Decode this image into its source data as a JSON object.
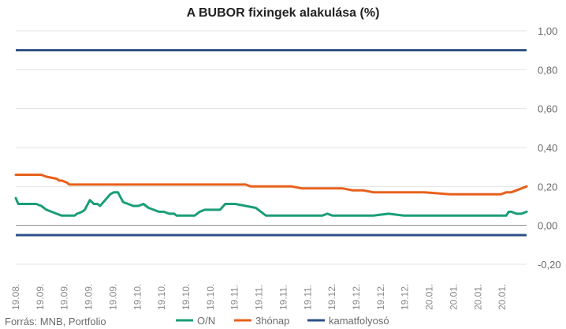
{
  "chart_data": {
    "type": "line",
    "title": "A BUBOR fixingek alakulása (%)",
    "source": "Forrás: MNB, Portfolio",
    "ylim": [
      -0.2,
      1.0
    ],
    "yticks": [
      "1,00",
      "0,80",
      "0,60",
      "0,40",
      "0,20",
      "0,00",
      "-0,20"
    ],
    "ytick_values": [
      1.0,
      0.8,
      0.6,
      0.4,
      0.2,
      0.0,
      -0.2
    ],
    "xlim": [
      0,
      100
    ],
    "x_tick_labels": [
      "19.08.",
      "19.09.",
      "19.09.",
      "19.09.",
      "19.09.",
      "19.10.",
      "19.10.",
      "19.10.",
      "19.10.",
      "19.11.",
      "19.11.",
      "19.11.",
      "19.11.",
      "19.12.",
      "19.12.",
      "19.12.",
      "19.12.",
      "20.01.",
      "20.01.",
      "20.01.",
      "20.01."
    ],
    "x_tick_positions": [
      0,
      4.76,
      9.52,
      14.29,
      19.05,
      23.81,
      28.57,
      33.33,
      38.1,
      42.86,
      47.62,
      52.38,
      57.14,
      61.9,
      66.67,
      71.43,
      76.19,
      80.95,
      85.71,
      90.48,
      95.24
    ],
    "legend_position": "bottom",
    "series": [
      {
        "name": "O/N",
        "color": "#1a9e77",
        "x": [
          0,
          0.5,
          1.5,
          3,
          4,
          5,
          6,
          7,
          8,
          9,
          10,
          11,
          11.5,
          12,
          13,
          13.5,
          14.5,
          15.3,
          16,
          16.5,
          17.5,
          18.5,
          19.2,
          20,
          21,
          22,
          23,
          23.5,
          24,
          25,
          26,
          27,
          28,
          29,
          30,
          31,
          31.5,
          32,
          33,
          34,
          35,
          36,
          37,
          38,
          38.5,
          39,
          40,
          41,
          43,
          45,
          47,
          48,
          49,
          50,
          52,
          54,
          56,
          58,
          60,
          61,
          62,
          63,
          65,
          67,
          70,
          73,
          76,
          80,
          84,
          88,
          91,
          92,
          93,
          94,
          95,
          96,
          96.5,
          97,
          98,
          99,
          100
        ],
        "y": [
          0.14,
          0.11,
          0.11,
          0.11,
          0.11,
          0.1,
          0.08,
          0.07,
          0.06,
          0.05,
          0.05,
          0.05,
          0.05,
          0.06,
          0.07,
          0.08,
          0.13,
          0.11,
          0.11,
          0.1,
          0.13,
          0.16,
          0.17,
          0.17,
          0.12,
          0.11,
          0.1,
          0.1,
          0.1,
          0.11,
          0.09,
          0.08,
          0.07,
          0.07,
          0.06,
          0.06,
          0.05,
          0.05,
          0.05,
          0.05,
          0.05,
          0.07,
          0.08,
          0.08,
          0.08,
          0.08,
          0.08,
          0.11,
          0.11,
          0.1,
          0.09,
          0.07,
          0.05,
          0.05,
          0.05,
          0.05,
          0.05,
          0.05,
          0.05,
          0.06,
          0.05,
          0.05,
          0.05,
          0.05,
          0.05,
          0.06,
          0.05,
          0.05,
          0.05,
          0.05,
          0.05,
          0.05,
          0.05,
          0.05,
          0.05,
          0.05,
          0.07,
          0.07,
          0.06,
          0.06,
          0.07
        ]
      },
      {
        "name": "3hónap",
        "color": "#e8601c",
        "x": [
          0,
          5,
          6,
          8,
          8.5,
          9,
          10,
          10.5,
          11,
          12,
          20,
          30,
          40,
          41,
          43,
          45,
          46,
          50,
          54,
          56,
          57,
          58,
          59,
          60,
          63,
          64,
          66,
          68,
          70,
          75,
          80,
          85,
          90,
          94,
          95,
          96,
          97,
          98,
          99,
          100
        ],
        "y": [
          0.26,
          0.26,
          0.25,
          0.24,
          0.23,
          0.23,
          0.22,
          0.21,
          0.21,
          0.21,
          0.21,
          0.21,
          0.21,
          0.21,
          0.21,
          0.21,
          0.2,
          0.2,
          0.2,
          0.19,
          0.19,
          0.19,
          0.19,
          0.19,
          0.19,
          0.19,
          0.18,
          0.18,
          0.17,
          0.17,
          0.17,
          0.16,
          0.16,
          0.16,
          0.16,
          0.17,
          0.17,
          0.18,
          0.19,
          0.2
        ]
      },
      {
        "name": "kamatfolyosó",
        "color": "#2e4f87",
        "upper": [
          0.9,
          0.9
        ],
        "lower": [
          -0.05,
          -0.05
        ],
        "x": [
          0,
          100
        ]
      }
    ]
  }
}
